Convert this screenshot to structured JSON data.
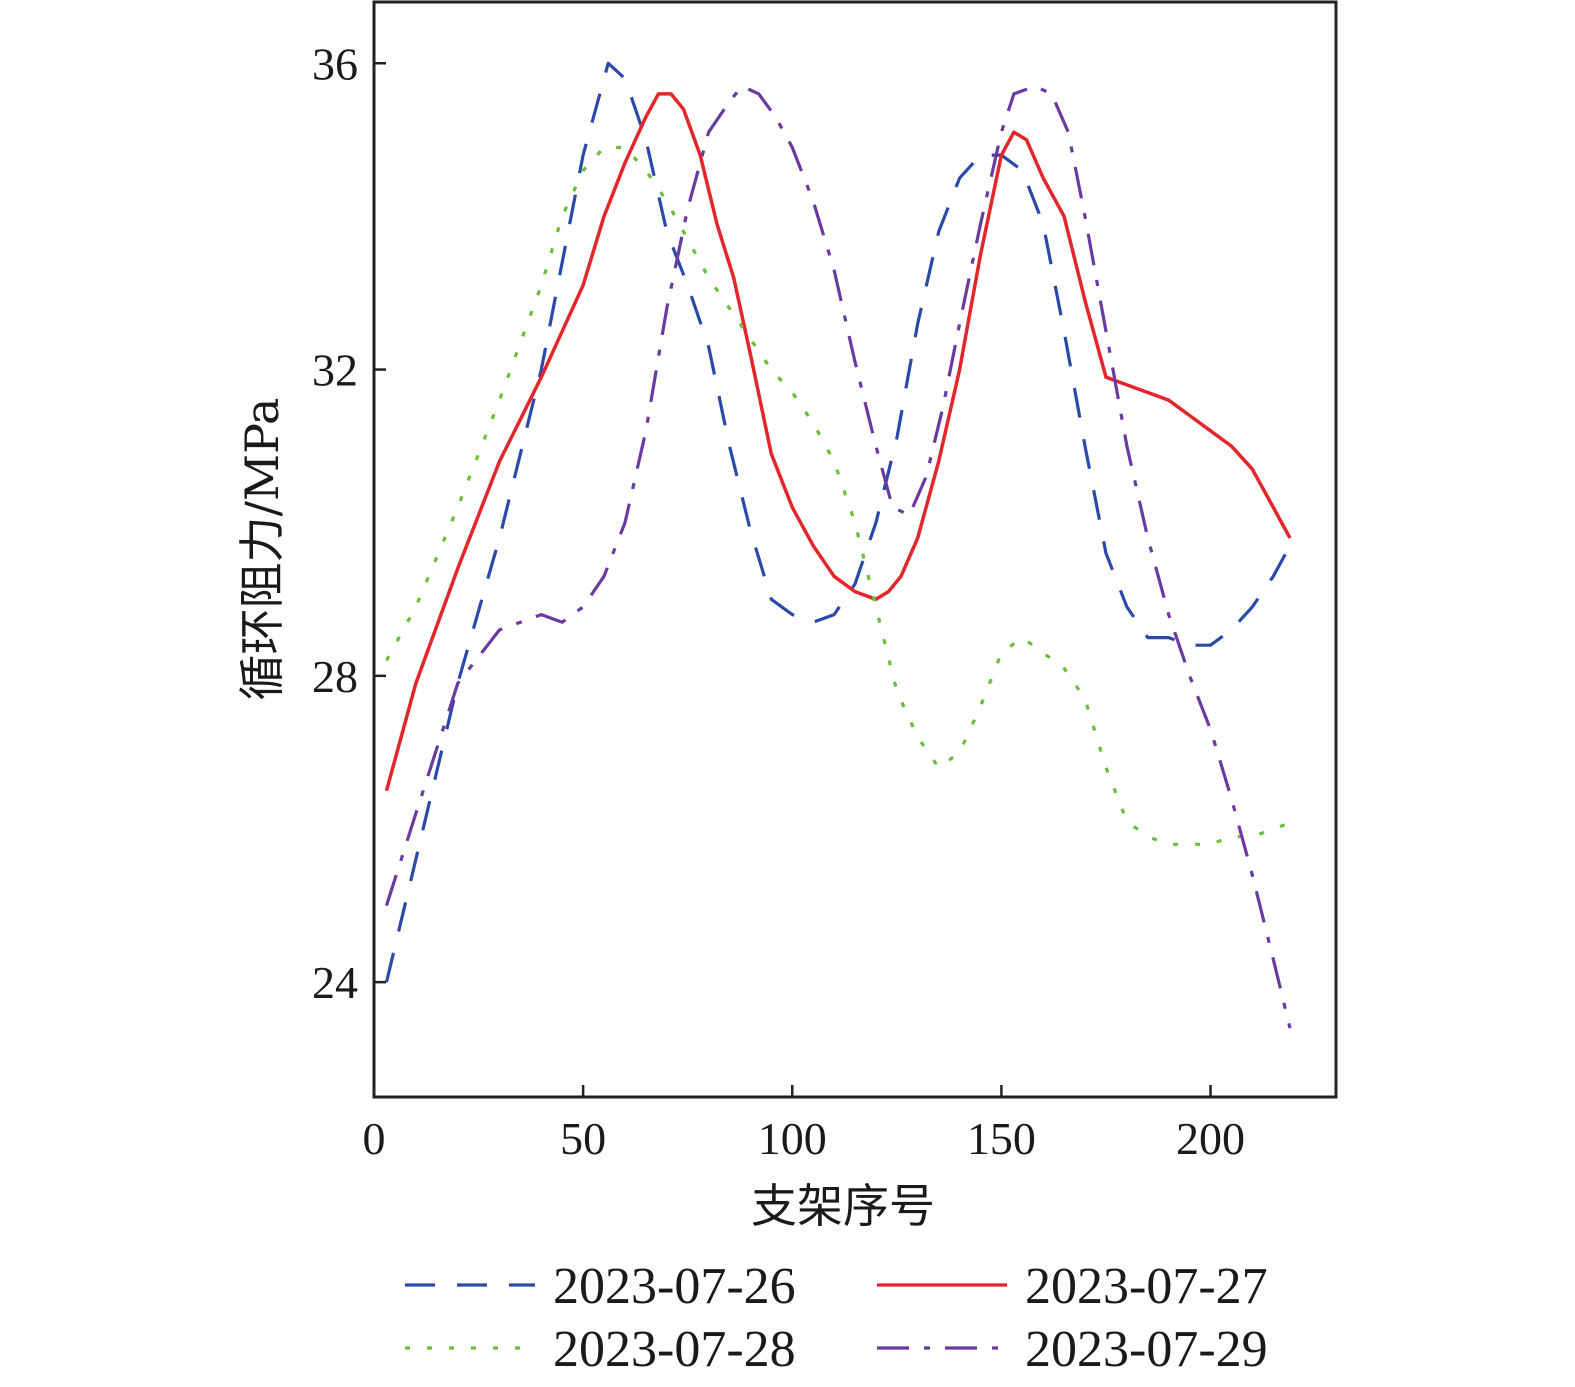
{
  "chart_data": {
    "type": "line",
    "xlabel": "支架序号",
    "ylabel": "循环阻力/MPa",
    "xlim": [
      0,
      230
    ],
    "ylim": [
      22.5,
      36.8
    ],
    "xticks": [
      0,
      50,
      100,
      150,
      200
    ],
    "yticks": [
      24,
      28,
      32,
      36
    ],
    "xtick_labels": [
      "0",
      "50",
      "100",
      "150",
      "200"
    ],
    "ytick_labels": [
      "24",
      "28",
      "32",
      "36"
    ],
    "grid": false,
    "legend": "bottom",
    "series": [
      {
        "name": "2023-07-26",
        "color": "#2b4aa8",
        "dash": "dashed",
        "x": [
          3,
          10,
          20,
          30,
          40,
          50,
          56,
          60,
          65,
          70,
          75,
          80,
          85,
          90,
          95,
          100,
          105,
          110,
          115,
          120,
          125,
          130,
          135,
          140,
          145,
          150,
          155,
          160,
          165,
          170,
          175,
          180,
          185,
          190,
          195,
          200,
          205,
          210,
          215,
          220
        ],
        "y": [
          24.0,
          25.6,
          27.9,
          29.8,
          32.0,
          34.8,
          36.0,
          35.8,
          35.0,
          33.8,
          33.1,
          32.3,
          31.0,
          29.9,
          29.0,
          28.8,
          28.7,
          28.8,
          29.2,
          30.0,
          31.1,
          32.6,
          33.8,
          34.5,
          34.8,
          34.8,
          34.6,
          33.9,
          32.5,
          31.0,
          29.6,
          28.9,
          28.5,
          28.5,
          28.4,
          28.4,
          28.6,
          28.9,
          29.3,
          29.8
        ]
      },
      {
        "name": "2023-07-27",
        "color": "#e3262c",
        "dash": "solid",
        "x": [
          3,
          10,
          20,
          30,
          40,
          45,
          50,
          55,
          60,
          65,
          68,
          71,
          74,
          78,
          82,
          86,
          90,
          95,
          100,
          105,
          110,
          115,
          120,
          123,
          126,
          130,
          135,
          140,
          145,
          150,
          153,
          156,
          160,
          165,
          170,
          175,
          180,
          185,
          190,
          195,
          200,
          205,
          210,
          215,
          219
        ],
        "y": [
          26.5,
          27.9,
          29.4,
          30.8,
          31.9,
          32.5,
          33.1,
          34.0,
          34.7,
          35.3,
          35.6,
          35.6,
          35.4,
          34.8,
          33.9,
          33.2,
          32.2,
          30.9,
          30.2,
          29.7,
          29.3,
          29.1,
          29.0,
          29.1,
          29.3,
          29.8,
          30.8,
          32.0,
          33.5,
          34.8,
          35.1,
          35.0,
          34.5,
          34.0,
          32.9,
          31.9,
          31.8,
          31.7,
          31.6,
          31.4,
          31.2,
          31.0,
          30.7,
          30.2,
          29.8
        ]
      },
      {
        "name": "2023-07-28",
        "color": "#6abf3a",
        "dash": "dotted",
        "x": [
          3,
          10,
          20,
          30,
          40,
          45,
          50,
          55,
          60,
          65,
          70,
          75,
          80,
          85,
          90,
          95,
          100,
          105,
          110,
          115,
          120,
          125,
          130,
          135,
          140,
          145,
          150,
          155,
          160,
          165,
          170,
          175,
          180,
          185,
          190,
          195,
          200,
          205,
          210,
          215,
          220
        ],
        "y": [
          28.2,
          28.9,
          30.2,
          31.6,
          33.1,
          34.0,
          34.6,
          34.9,
          34.9,
          34.6,
          34.2,
          33.7,
          33.2,
          32.8,
          32.4,
          32.0,
          31.7,
          31.3,
          30.8,
          30.0,
          28.9,
          27.8,
          27.2,
          26.8,
          27.0,
          27.6,
          28.3,
          28.5,
          28.3,
          28.1,
          27.7,
          26.8,
          26.1,
          25.9,
          25.8,
          25.8,
          25.8,
          25.9,
          25.9,
          26.0,
          26.1
        ]
      },
      {
        "name": "2023-07-29",
        "color": "#6a3aa0",
        "dash": "dashdot",
        "x": [
          3,
          10,
          20,
          30,
          40,
          45,
          50,
          55,
          60,
          65,
          70,
          75,
          80,
          85,
          88,
          92,
          96,
          100,
          105,
          110,
          115,
          120,
          124,
          128,
          132,
          136,
          140,
          145,
          150,
          153,
          158,
          162,
          166,
          170,
          175,
          180,
          185,
          190,
          195,
          200,
          205,
          210,
          215,
          219
        ],
        "y": [
          25.0,
          26.2,
          27.9,
          28.6,
          28.8,
          28.7,
          28.9,
          29.3,
          30.0,
          31.2,
          32.8,
          34.1,
          35.1,
          35.5,
          35.7,
          35.6,
          35.3,
          34.9,
          34.2,
          33.3,
          32.1,
          31.0,
          30.2,
          30.1,
          30.6,
          31.5,
          32.6,
          33.9,
          35.1,
          35.6,
          35.7,
          35.6,
          35.1,
          34.0,
          32.5,
          31.0,
          29.8,
          28.8,
          28.0,
          27.3,
          26.4,
          25.4,
          24.3,
          23.4
        ]
      }
    ]
  }
}
